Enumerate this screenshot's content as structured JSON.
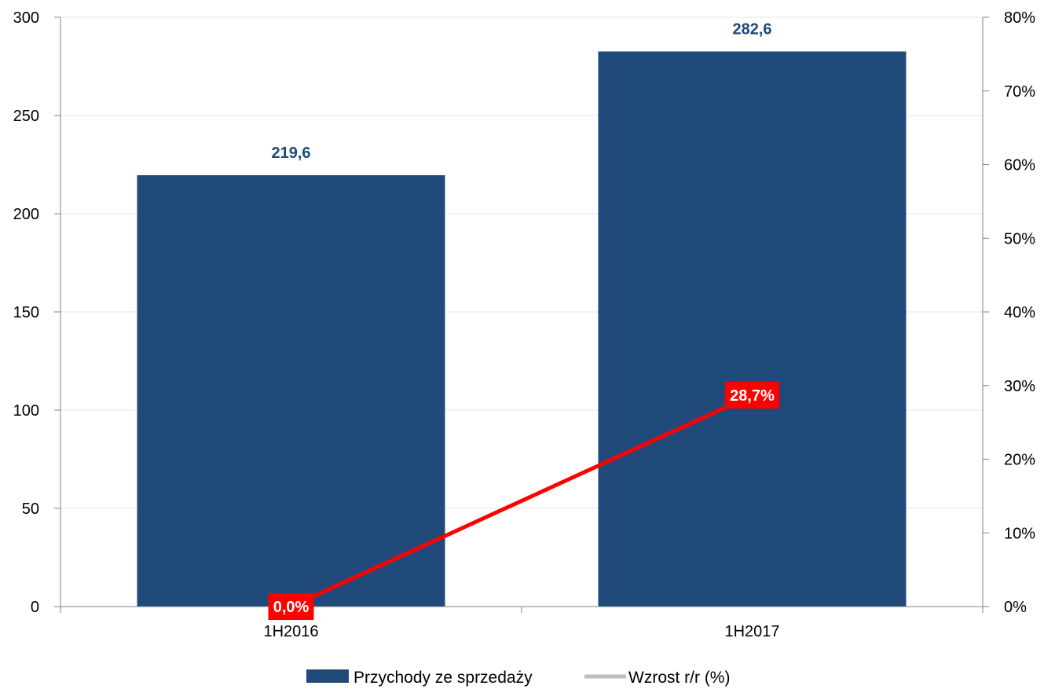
{
  "chart_data": {
    "type": "bar",
    "categories": [
      "1H2016",
      "1H2017"
    ],
    "series": [
      {
        "name": "Przychody ze sprzedaży",
        "type": "bar",
        "axis": "left",
        "values": [
          219.6,
          282.6
        ],
        "data_labels": [
          "219,6",
          "282,6"
        ],
        "color": "#204a7a",
        "label_color": "#204a7a"
      },
      {
        "name": "Wzrost r/r (%)",
        "type": "line",
        "axis": "right",
        "values": [
          0.0,
          28.7
        ],
        "data_labels": [
          "0,0%",
          "28,7%"
        ],
        "color": "#ff0000",
        "legend_color": "#bfbfbf"
      }
    ],
    "y_left": {
      "min": 0,
      "max": 300,
      "ticks": [
        0,
        50,
        100,
        150,
        200,
        250,
        300
      ],
      "tick_labels": [
        "0",
        "50",
        "100",
        "150",
        "200",
        "250",
        "300"
      ]
    },
    "y_right": {
      "min": 0,
      "max": 80,
      "ticks": [
        0,
        10,
        20,
        30,
        40,
        50,
        60,
        70,
        80
      ],
      "tick_labels": [
        "0%",
        "10%",
        "20%",
        "30%",
        "40%",
        "50%",
        "60%",
        "70%",
        "80%"
      ]
    },
    "title": "",
    "xlabel": "",
    "ylabel": "",
    "grid": true,
    "legend_position": "bottom",
    "colors": {
      "bar": "#204a7a",
      "line": "#ff0000",
      "grid": "#e6e6e6",
      "axis": "#808080"
    }
  }
}
